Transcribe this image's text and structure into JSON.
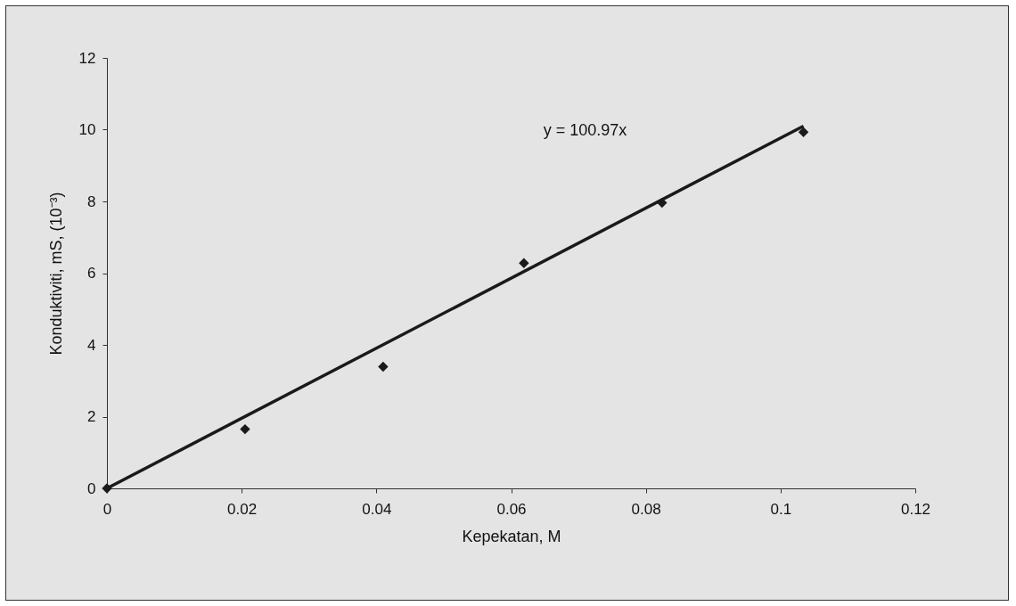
{
  "chart_data": {
    "type": "scatter",
    "xlabel": "Kepekatan, M",
    "ylabel": "Konduktiviti, mS, (10⁻³)",
    "annotations": [
      "y = 100.97x"
    ],
    "xlim": [
      0,
      0.12
    ],
    "xticks": [
      0,
      0.02,
      0.04,
      0.06,
      0.08,
      0.1,
      0.12
    ],
    "ylim": [
      0,
      12
    ],
    "yticks": [
      0,
      2,
      4,
      6,
      8,
      10,
      12
    ],
    "grid": false,
    "series": [
      {
        "color": "#1a1a1a",
        "marker": "diamond",
        "x": [
          0,
          0.0205,
          0.041,
          0.0619,
          0.0824,
          0.1034
        ],
        "values": [
          0,
          1.65,
          3.39,
          6.28,
          7.96,
          9.93
        ]
      },
      {
        "type": "line",
        "color": "#1a1a1a",
        "line_style": "solid",
        "x": [
          0,
          0.1034
        ],
        "values": [
          0,
          10.1
        ]
      }
    ]
  }
}
